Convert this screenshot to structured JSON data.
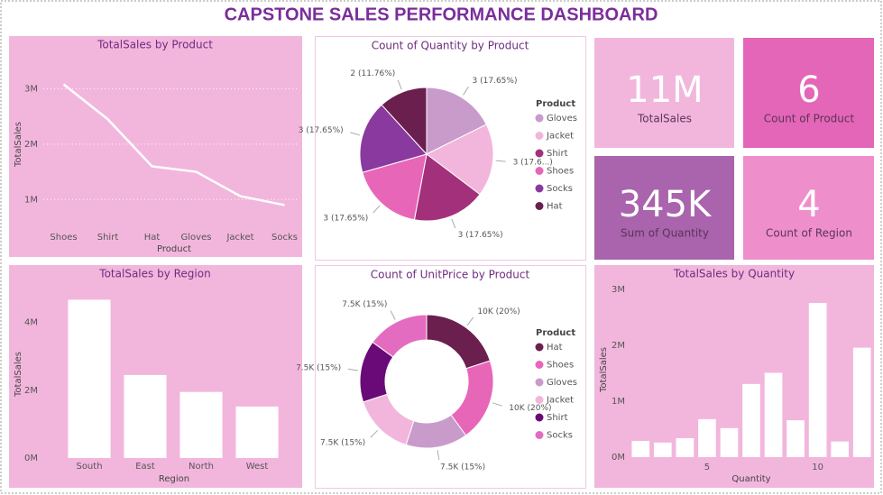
{
  "title": "CAPSTONE SALES PERFORMANCE DASHBOARD",
  "cards": [
    {
      "value": "11M",
      "label": "TotalSales"
    },
    {
      "value": "6",
      "label": "Count of Product"
    },
    {
      "value": "345K",
      "label": "Sum of Quantity"
    },
    {
      "value": "4",
      "label": "Count of Region"
    }
  ],
  "chart_data": [
    {
      "type": "line",
      "title": "TotalSales by Product",
      "x_label": "Product",
      "y_label": "TotalSales",
      "categories": [
        "Shoes",
        "Shirt",
        "Hat",
        "Gloves",
        "Jacket",
        "Socks"
      ],
      "values": [
        3080000,
        2450000,
        1600000,
        1500000,
        1060000,
        900000
      ],
      "color": "#ffffff",
      "ylim": [
        500000,
        3300000
      ],
      "yticks": [
        {
          "value": 1000000,
          "label": "1M"
        },
        {
          "value": 2000000,
          "label": "2M"
        },
        {
          "value": 3000000,
          "label": "3M"
        }
      ],
      "grid": true
    },
    {
      "type": "pie",
      "title": "Count of Quantity by Product",
      "legend_title": "Product",
      "categories": [
        "Gloves",
        "Jacket",
        "Shirt",
        "Shoes",
        "Socks",
        "Hat"
      ],
      "values": [
        3,
        3,
        3,
        3,
        3,
        2
      ],
      "value_labels": [
        "3 (17.65%)",
        "3 (17.6...)",
        "3 (17.65%)",
        "3 (17.65%)",
        "3 (17.65%)",
        "2 (11.76%)"
      ],
      "colors": [
        "#c99bcb",
        "#f2b6dc",
        "#a3307b",
        "#e866b8",
        "#8a3a9e",
        "#6b1f4f"
      ]
    },
    {
      "type": "bar",
      "title": "TotalSales by Region",
      "x_label": "Region",
      "y_label": "TotalSales",
      "categories": [
        "South",
        "East",
        "North",
        "West"
      ],
      "values": [
        4670000,
        2450000,
        1950000,
        1520000
      ],
      "color": "#ffffff",
      "ylim": [
        0,
        5000000
      ],
      "yticks": [
        {
          "value": 0,
          "label": "0M"
        },
        {
          "value": 2000000,
          "label": "2M"
        },
        {
          "value": 4000000,
          "label": "4M"
        }
      ],
      "grid": false
    },
    {
      "type": "donut",
      "title": "Count of UnitPrice by Product",
      "legend_title": "Product",
      "categories": [
        "Hat",
        "Shoes",
        "Gloves",
        "Jacket",
        "Shirt",
        "Socks"
      ],
      "values": [
        10000,
        10000,
        7500,
        7500,
        7500,
        7500
      ],
      "value_labels": [
        "10K (20%)",
        "10K (20%)",
        "7.5K (15%)",
        "7.5K (15%)",
        "7.5K (15%)",
        "7.5K (15%)"
      ],
      "colors": [
        "#6b1f4f",
        "#e866b8",
        "#c99bcb",
        "#f2b6dc",
        "#6a0a78",
        "#e46cc0"
      ]
    },
    {
      "type": "numbar",
      "title": "TotalSales by Quantity",
      "x_label": "Quantity",
      "y_label": "TotalSales",
      "x": [
        2,
        3,
        4,
        5,
        6,
        7,
        8,
        9,
        10,
        11,
        12
      ],
      "values": [
        290000,
        260000,
        340000,
        680000,
        520000,
        1310000,
        1510000,
        660000,
        2760000,
        280000,
        1960000
      ],
      "color": "#ffffff",
      "xlim": [
        1.5,
        12.5
      ],
      "xticks": [
        5,
        10
      ],
      "ylim": [
        0,
        3100000
      ],
      "yticks": [
        {
          "value": 0,
          "label": "0M"
        },
        {
          "value": 1000000,
          "label": "1M"
        },
        {
          "value": 2000000,
          "label": "2M"
        },
        {
          "value": 3000000,
          "label": "3M"
        }
      ],
      "grid": false
    }
  ]
}
